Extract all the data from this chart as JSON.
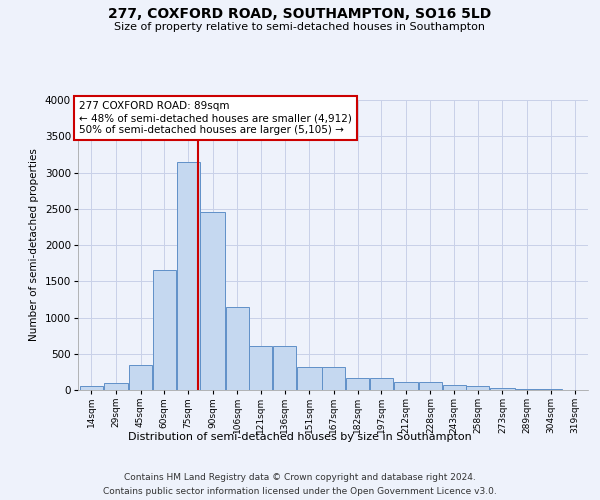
{
  "title": "277, COXFORD ROAD, SOUTHAMPTON, SO16 5LD",
  "subtitle": "Size of property relative to semi-detached houses in Southampton",
  "xlabel": "Distribution of semi-detached houses by size in Southampton",
  "ylabel": "Number of semi-detached properties",
  "annotation_title": "277 COXFORD ROAD: 89sqm",
  "annotation_line1": "← 48% of semi-detached houses are smaller (4,912)",
  "annotation_line2": "50% of semi-detached houses are larger (5,105) →",
  "footer_line1": "Contains HM Land Registry data © Crown copyright and database right 2024.",
  "footer_line2": "Contains public sector information licensed under the Open Government Licence v3.0.",
  "property_size_sqm": 89,
  "bar_color": "#c5d8f0",
  "bar_edge_color": "#6090c8",
  "highlight_color": "#cc0000",
  "annotation_box_color": "#ffffff",
  "annotation_box_edge": "#cc0000",
  "background_color": "#eef2fb",
  "grid_color": "#c8d0e8",
  "bins": [
    14,
    29,
    45,
    60,
    75,
    90,
    106,
    121,
    136,
    151,
    167,
    182,
    197,
    212,
    228,
    243,
    258,
    273,
    289,
    304,
    319,
    334
  ],
  "bin_labels": [
    "14sqm",
    "29sqm",
    "45sqm",
    "60sqm",
    "75sqm",
    "90sqm",
    "106sqm",
    "121sqm",
    "136sqm",
    "151sqm",
    "167sqm",
    "182sqm",
    "197sqm",
    "212sqm",
    "228sqm",
    "243sqm",
    "258sqm",
    "273sqm",
    "289sqm",
    "304sqm",
    "319sqm"
  ],
  "counts": [
    50,
    100,
    350,
    1650,
    3150,
    2450,
    1150,
    610,
    610,
    320,
    320,
    170,
    165,
    105,
    105,
    70,
    50,
    30,
    15,
    10,
    5
  ],
  "ylim": [
    0,
    4000
  ],
  "yticks": [
    0,
    500,
    1000,
    1500,
    2000,
    2500,
    3000,
    3500,
    4000
  ]
}
